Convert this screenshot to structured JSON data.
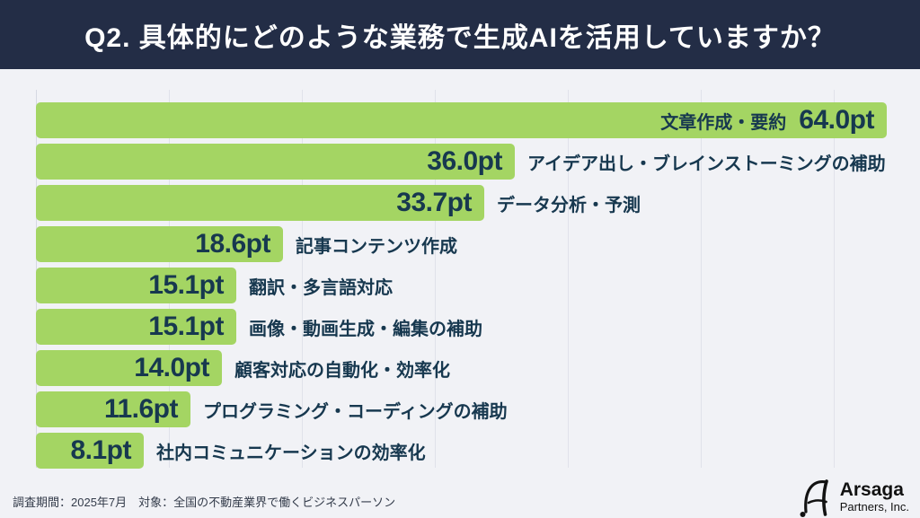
{
  "header": {
    "title": "Q2. 具体的にどのような業務で生成AIを活用していますか？",
    "bg_color": "#232d46",
    "text_color": "#ffffff"
  },
  "chart_data": {
    "type": "bar",
    "orientation": "horizontal",
    "unit": "pt",
    "categories": [
      "文章作成・要約",
      "アイデア出し・ブレインストーミングの補助",
      "データ分析・予測",
      "記事コンテンツ作成",
      "翻訳・多言語対応",
      "画像・動画生成・編集の補助",
      "顧客対応の自動化・効率化",
      "プログラミング・コーディングの補助",
      "社内コミュニケーションの効率化"
    ],
    "values": [
      64.0,
      36.0,
      33.7,
      18.6,
      15.1,
      15.1,
      14.0,
      11.6,
      8.1
    ],
    "value_labels": [
      "64.0pt",
      "36.0pt",
      "33.7pt",
      "18.6pt",
      "15.1pt",
      "15.1pt",
      "14.0pt",
      "11.6pt",
      "8.1pt"
    ],
    "xlim": [
      0,
      66.5
    ],
    "gridline_values": [
      0,
      10,
      20,
      30,
      40,
      50,
      60
    ],
    "grid": true,
    "legend": false,
    "bar_color": "#a4d563",
    "label_color": "#17384f",
    "first_bar_label_inside": true
  },
  "footer": {
    "note": "調査期間：2025年7月　対象：全国の不動産業界で働くビジネスパーソン",
    "logo_name": "Arsaga",
    "logo_sub": "Partners, Inc."
  }
}
